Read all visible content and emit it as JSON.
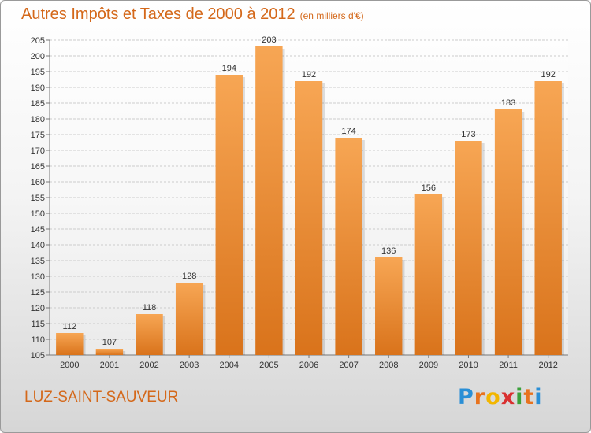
{
  "header": {
    "title": "Autres Impôts et Taxes de 2000 à 2012",
    "unit": "(en milliers d'€)"
  },
  "footer": {
    "place": "LUZ-SAINT-SAUVEUR",
    "logo_letters": [
      "P",
      "r",
      "o",
      "x",
      "i",
      "t",
      "i"
    ],
    "logo_colors": [
      "#2a8fd6",
      "#e8731e",
      "#f2b600",
      "#d93030",
      "#3aa13a",
      "#e8731e",
      "#2a8fd6"
    ]
  },
  "colors": {
    "bar_light": "#f7a654",
    "bar_dark": "#d9731b",
    "accent": "#d4681a",
    "grid": "#cccccc"
  },
  "chart_data": {
    "type": "bar",
    "title": "Autres Impôts et Taxes de 2000 à 2012",
    "categories": [
      "2000",
      "2001",
      "2002",
      "2003",
      "2004",
      "2005",
      "2006",
      "2007",
      "2008",
      "2009",
      "2010",
      "2011",
      "2012"
    ],
    "values": [
      112,
      107,
      118,
      128,
      194,
      203,
      192,
      174,
      136,
      156,
      173,
      183,
      192
    ],
    "ylim": [
      105,
      205
    ],
    "ytick_step": 5,
    "grid": true,
    "xlabel": "",
    "ylabel": ""
  }
}
